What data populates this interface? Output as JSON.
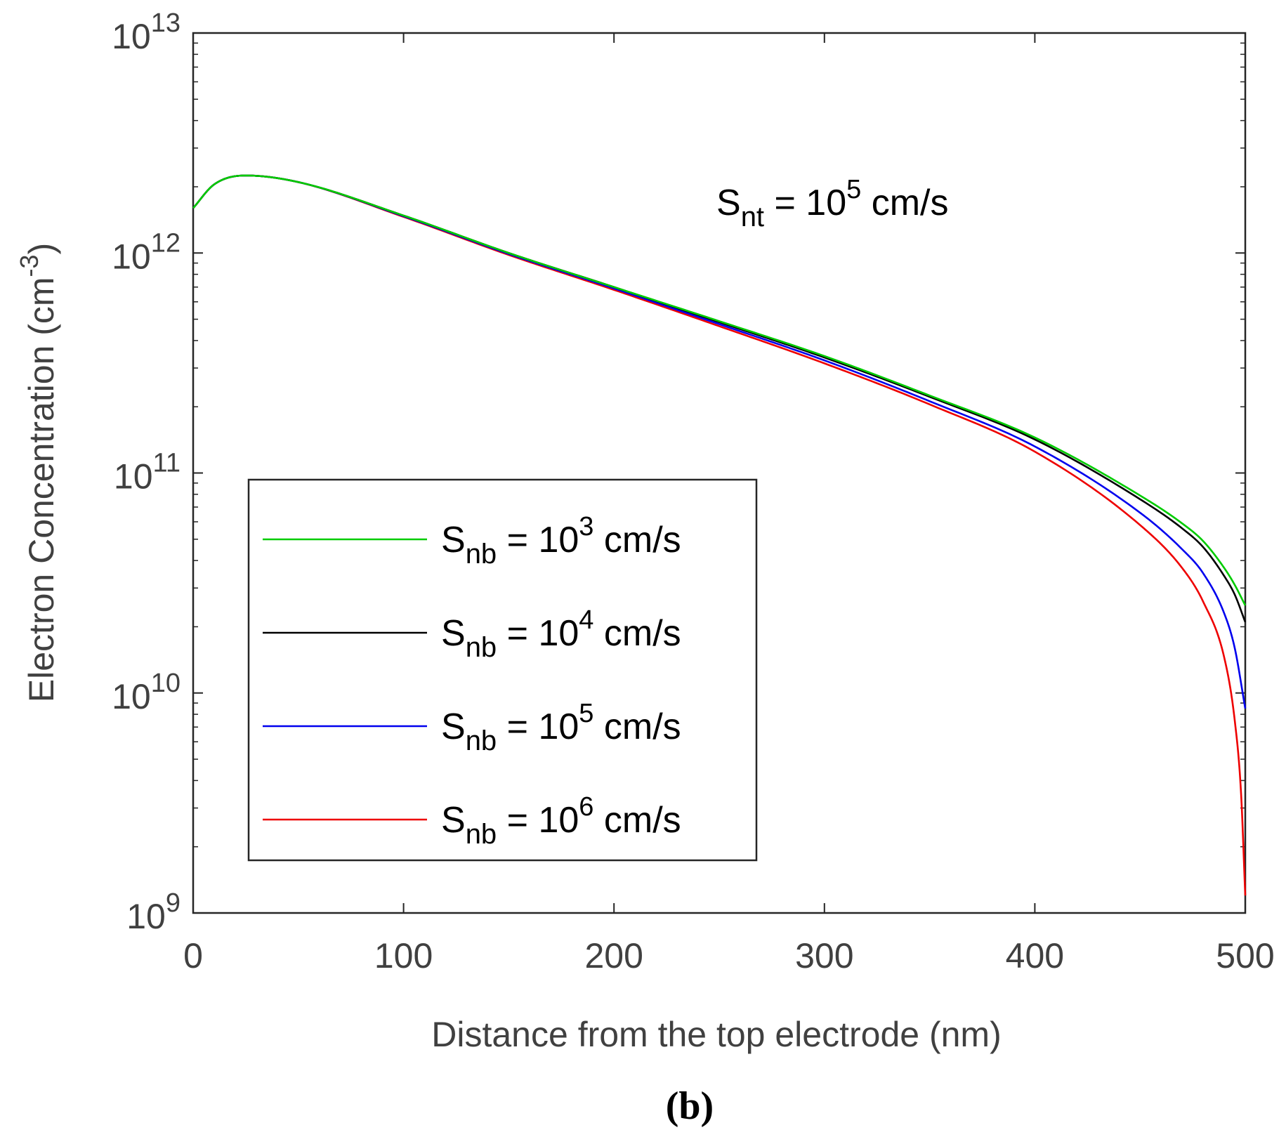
{
  "chart_data": {
    "type": "line",
    "panel_label": "(b)",
    "xlabel": "Distance from the top electrode (nm)",
    "ylabel": "Electron Concentration (cm",
    "ylabel_exponent": "-3",
    "ylabel_suffix": ")",
    "xlim": [
      0,
      500
    ],
    "ylim": [
      1000000000.0,
      10000000000000.0
    ],
    "yscale": "log",
    "xticks": [
      0,
      100,
      200,
      300,
      400,
      500
    ],
    "xtick_labels": [
      "0",
      "100",
      "200",
      "300",
      "400",
      "500"
    ],
    "yticks_exponents": [
      9,
      10,
      11,
      12,
      13
    ],
    "ytick_base": "10",
    "ytick_labels": [
      "9",
      "10",
      "11",
      "12",
      "13"
    ],
    "annotation": {
      "prefix": "S",
      "subscript": "nt",
      "middle": " = 10",
      "superscript": "5",
      "suffix": " cm/s"
    },
    "legend_location": "lower-left",
    "series": [
      {
        "name": "S_nb = 10^3 cm/s",
        "label_prefix": "S",
        "label_sub": "nb",
        "label_mid": " = 10",
        "label_sup": "3",
        "label_suffix": " cm/s",
        "color": "#00cc00",
        "x": [
          0,
          10,
          25,
          50,
          100,
          150,
          200,
          250,
          300,
          350,
          400,
          450,
          470,
          480,
          490,
          495,
          500
        ],
        "y": [
          1600000000000.0,
          2050000000000.0,
          2250000000000.0,
          2100000000000.0,
          1480000000000.0,
          1000000000000.0,
          700000000000.0,
          490000000000.0,
          340000000000.0,
          225000000000.0,
          145000000000.0,
          79000000000.0,
          59000000000.0,
          49000000000.0,
          37000000000.0,
          31000000000.0,
          25000000000.0
        ]
      },
      {
        "name": "S_nb = 10^4 cm/s",
        "label_prefix": "S",
        "label_sub": "nb",
        "label_mid": " = 10",
        "label_sup": "4",
        "label_suffix": " cm/s",
        "color": "#000000",
        "x": [
          0,
          10,
          25,
          50,
          100,
          150,
          200,
          250,
          300,
          350,
          400,
          450,
          470,
          480,
          490,
          495,
          500
        ],
        "y": [
          1600000000000.0,
          2050000000000.0,
          2250000000000.0,
          2100000000000.0,
          1480000000000.0,
          1000000000000.0,
          700000000000.0,
          485000000000.0,
          335000000000.0,
          222000000000.0,
          142000000000.0,
          76000000000.0,
          56000000000.0,
          46000000000.0,
          34000000000.0,
          28000000000.0,
          21000000000.0
        ]
      },
      {
        "name": "S_nb = 10^5 cm/s",
        "label_prefix": "S",
        "label_sub": "nb",
        "label_mid": " = 10",
        "label_sup": "5",
        "label_suffix": " cm/s",
        "color": "#0000ee",
        "x": [
          0,
          10,
          25,
          50,
          100,
          150,
          200,
          250,
          300,
          350,
          400,
          450,
          470,
          480,
          490,
          495,
          500
        ],
        "y": [
          1600000000000.0,
          2050000000000.0,
          2250000000000.0,
          2100000000000.0,
          1470000000000.0,
          990000000000.0,
          690000000000.0,
          475000000000.0,
          325000000000.0,
          212000000000.0,
          132000000000.0,
          66000000000.0,
          45000000000.0,
          35000000000.0,
          23000000000.0,
          16000000000.0,
          8500000000.0
        ]
      },
      {
        "name": "S_nb = 10^6 cm/s",
        "label_prefix": "S",
        "label_sub": "nb",
        "label_mid": " = 10",
        "label_sup": "6",
        "label_suffix": " cm/s",
        "color": "#ee0000",
        "x": [
          0,
          10,
          25,
          50,
          100,
          150,
          200,
          250,
          300,
          350,
          400,
          450,
          470,
          480,
          490,
          495,
          498,
          500
        ],
        "y": [
          1600000000000.0,
          2050000000000.0,
          2250000000000.0,
          2100000000000.0,
          1460000000000.0,
          980000000000.0,
          680000000000.0,
          465000000000.0,
          315000000000.0,
          205000000000.0,
          125000000000.0,
          58000000000.0,
          37000000000.0,
          26000000000.0,
          14500000000.0,
          7500000000.0,
          3500000000.0,
          1200000000.0
        ]
      }
    ]
  }
}
